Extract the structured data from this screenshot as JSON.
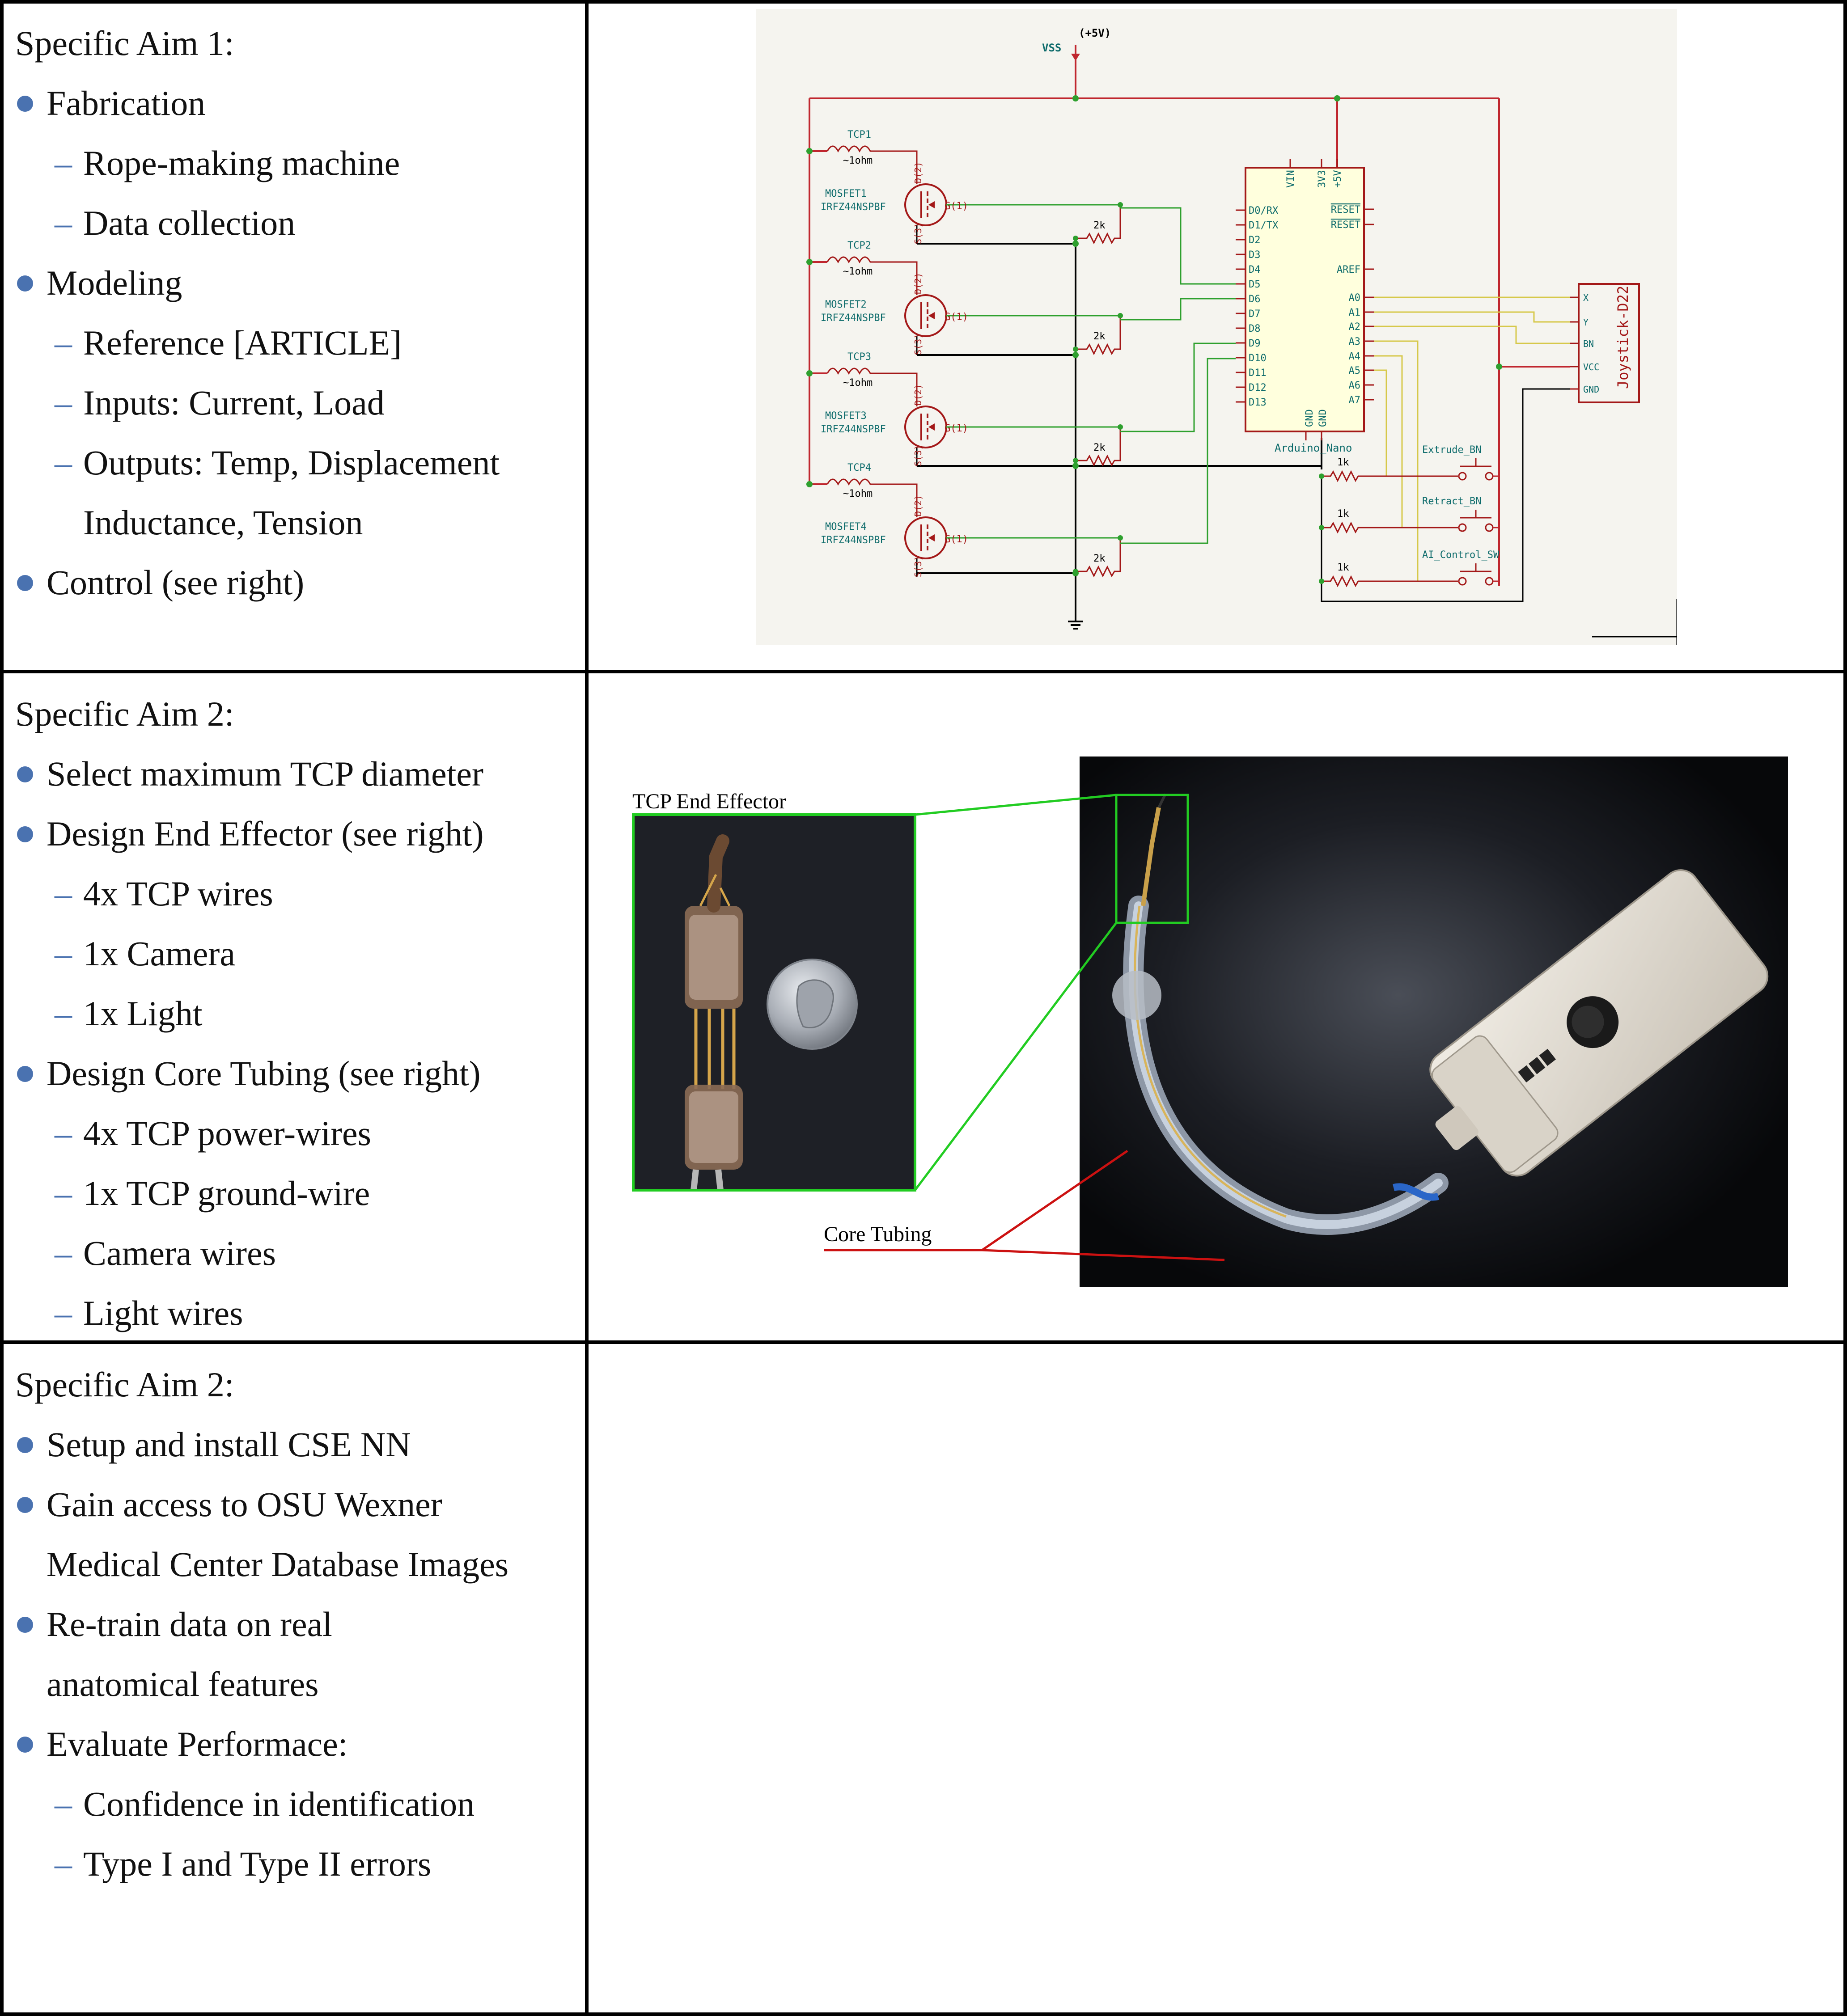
{
  "row1": {
    "heading": "Specific Aim 1:",
    "items": [
      {
        "level": 1,
        "text": "Fabrication"
      },
      {
        "level": 2,
        "text": "Rope-making machine"
      },
      {
        "level": 2,
        "text": "Data collection"
      },
      {
        "level": 1,
        "text": "Modeling"
      },
      {
        "level": 2,
        "text": "Reference [ARTICLE]"
      },
      {
        "level": 2,
        "text": "Inputs: Current, Load"
      },
      {
        "level": 2,
        "text": "Outputs: Temp, Displacement"
      },
      {
        "level": 3,
        "text": "Inductance, Tension"
      },
      {
        "level": 1,
        "text": "Control (see right)"
      }
    ]
  },
  "row2": {
    "heading": "Specific Aim 2:",
    "items": [
      {
        "level": 1,
        "text": "Select maximum TCP diameter"
      },
      {
        "level": 1,
        "text": "Design End Effector (see right)"
      },
      {
        "level": 2,
        "text": "4x TCP wires"
      },
      {
        "level": 2,
        "text": "1x Camera"
      },
      {
        "level": 2,
        "text": "1x Light"
      },
      {
        "level": 1,
        "text": "Design Core Tubing (see right)"
      },
      {
        "level": 2,
        "text": "4x TCP power-wires"
      },
      {
        "level": 2,
        "text": "1x TCP ground-wire"
      },
      {
        "level": 2,
        "text": "Camera wires"
      },
      {
        "level": 2,
        "text": "Light wires"
      }
    ]
  },
  "row3": {
    "heading": "Specific Aim 2:",
    "items": [
      {
        "level": 1,
        "text": "Setup and install CSE NN"
      },
      {
        "level": 1,
        "text": "Gain access to OSU Wexner"
      },
      {
        "level": 4,
        "text": "Medical Center Database Images"
      },
      {
        "level": 1,
        "text": "Re-train data on real"
      },
      {
        "level": 4,
        "text": "anatomical features"
      },
      {
        "level": 1,
        "text": "Evaluate Performace:"
      },
      {
        "level": 2,
        "text": "Confidence in identification"
      },
      {
        "level": 2,
        "text": "Type I and Type II errors"
      }
    ]
  },
  "schematic": {
    "power_label": "VSS",
    "power_value": "(+5V)",
    "tcps": [
      {
        "name": "TCP1",
        "value": "~1ohm",
        "mosfet": "MOSFET1",
        "part": "IRFZ44NSPBF"
      },
      {
        "name": "TCP2",
        "value": "~1ohm",
        "mosfet": "MOSFET2",
        "part": "IRFZ44NSPBF"
      },
      {
        "name": "TCP3",
        "value": "~1ohm",
        "mosfet": "MOSFET3",
        "part": "IRFZ44NSPBF"
      },
      {
        "name": "TCP4",
        "value": "~1ohm",
        "mosfet": "MOSFET4",
        "part": "IRFZ44NSPBF"
      }
    ],
    "gate_resistor": "2k",
    "pull_resistor": "1k",
    "pin_d": "D(2)",
    "pin_g": "G(1)",
    "pin_s": "S(3)",
    "arduino_name": "Arduino_Nano",
    "arduino_top_pins": [
      "VIN",
      "3V3",
      "+5V"
    ],
    "arduino_left_pins": [
      "D0/RX",
      "D1/TX",
      "D2",
      "D3",
      "D4",
      "D5",
      "D6",
      "D7",
      "D8",
      "D9",
      "D10",
      "D11",
      "D12",
      "D13"
    ],
    "arduino_right_pins": [
      "RESET",
      "RESET",
      "AREF",
      "A0",
      "A1",
      "A2",
      "A3",
      "A4",
      "A5",
      "A6",
      "A7"
    ],
    "arduino_gnd": [
      "GND",
      "GND"
    ],
    "joystick_name": "Joystick-D22",
    "joystick_pins": [
      "X",
      "Y",
      "BN",
      "VCC",
      "GND"
    ],
    "buttons": [
      "Extrude_BN",
      "Retract_BN",
      "AI_Control_SW"
    ]
  },
  "photo": {
    "end_effector_label": "TCP End Effector",
    "core_tubing_label": "Core Tubing"
  },
  "colors": {
    "bullet": "#4a72b0",
    "schematic_bg": "#f5f4ef",
    "wire_red": "#c0262e",
    "wire_green": "#2ea02e",
    "wire_yellow": "#d6c84a",
    "component": "#a31818",
    "label_teal": "#0d6b6b",
    "callout_green": "#22cc22",
    "callout_red": "#cc1111"
  }
}
